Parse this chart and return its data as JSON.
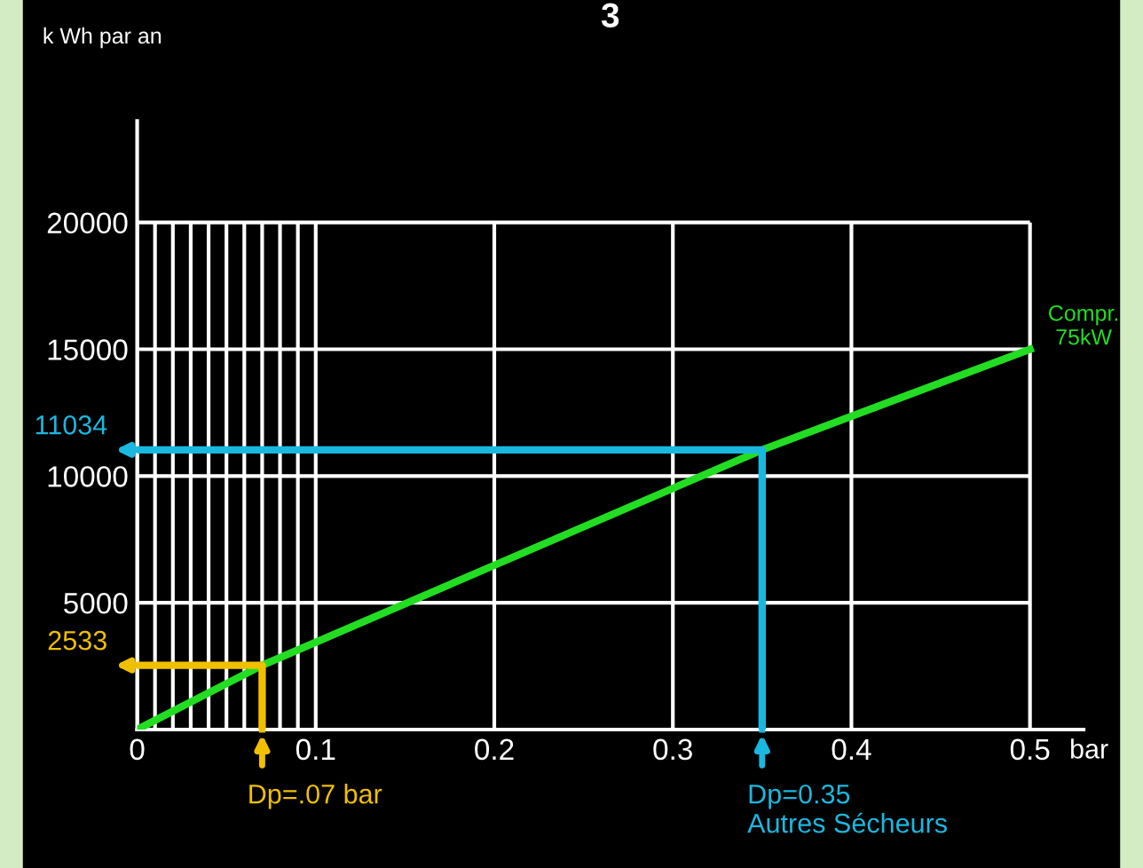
{
  "chart_data": {
    "type": "line",
    "title": "3",
    "ylabel": "k Wh par an",
    "xlabel": "bar",
    "series": [
      {
        "name": "Compr.\n75kW",
        "color": "#22dd22",
        "x": [
          0,
          0.07,
          0.35,
          0.5
        ],
        "values": [
          0,
          2533,
          11034,
          15000
        ]
      },
      {
        "color": "#1ab8e0",
        "x": [
          0,
          0.35,
          0.35
        ],
        "values": [
          11034,
          11034,
          0
        ]
      },
      {
        "color": "#f0c000",
        "x": [
          0,
          0.07,
          0.07
        ],
        "values": [
          2533,
          2533,
          0
        ]
      }
    ],
    "annotations": [
      "11034",
      "2533",
      "Dp=0.35\nAutres Sécheurs",
      "Dp=.07 bar"
    ],
    "xlim": [
      0,
      0.53
    ],
    "ylim": [
      0,
      24000
    ],
    "xticks": [
      0,
      {
        "value": 0.01,
        "label": null
      },
      {
        "value": 0.02,
        "label": null
      },
      {
        "value": 0.03,
        "label": null
      },
      {
        "value": 0.04,
        "label": null
      },
      {
        "value": 0.05,
        "label": null
      },
      {
        "value": 0.06,
        "label": null
      },
      {
        "value": 0.07,
        "label": null
      },
      {
        "value": 0.08,
        "label": null
      },
      {
        "value": 0.09,
        "label": null
      },
      0.1,
      0.2,
      0.3,
      0.4,
      0.5
    ],
    "yticks": [
      5000,
      10000,
      15000,
      20000
    ],
    "grid": true
  }
}
